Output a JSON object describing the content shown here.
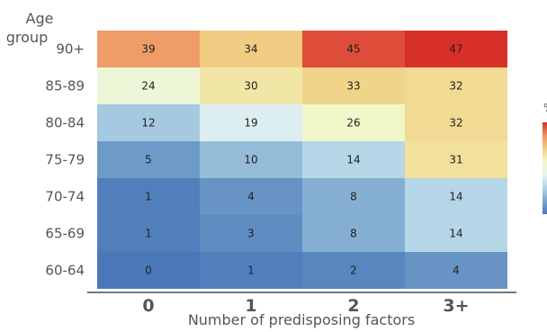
{
  "chart_data": {
    "type": "heatmap",
    "title": "",
    "xlabel": "Number of predisposing factors",
    "ylabel": "Age group",
    "x_categories": [
      "0",
      "1",
      "2",
      "3+"
    ],
    "y_categories": [
      "90+",
      "85-89",
      "80-84",
      "75-79",
      "70-74",
      "65-69",
      "60-64"
    ],
    "values": [
      [
        39,
        34,
        45,
        47
      ],
      [
        24,
        30,
        33,
        32
      ],
      [
        12,
        19,
        26,
        32
      ],
      [
        5,
        10,
        14,
        31
      ],
      [
        1,
        4,
        8,
        14
      ],
      [
        1,
        3,
        8,
        14
      ],
      [
        0,
        1,
        2,
        4
      ]
    ],
    "colorscale": [
      "#4a78b8",
      "#7aa6cd",
      "#b0d3e6",
      "#e6f3f2",
      "#f4f8c4",
      "#f0d184",
      "#ef9062",
      "#d73027"
    ],
    "value_range": [
      0,
      47
    ],
    "colorbar_label_fragment": "%",
    "grid": false
  }
}
